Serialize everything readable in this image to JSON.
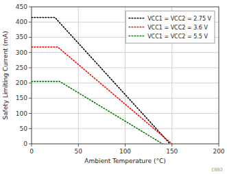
{
  "chart_data": {
    "type": "line",
    "x_label": "Ambient Temperature (°C)",
    "y_label": "Safety Limiting Current (mA)",
    "series": [
      {
        "name": "VCC1 = VCC2 = 2.75 V",
        "color": "#000000",
        "line_style": "dotted",
        "x": [
          0,
          25,
          148
        ],
        "values": [
          415,
          415,
          0
        ]
      },
      {
        "name": "VCC1 = VCC2 = 3.6 V",
        "color": "#ff0000",
        "line_style": "dotted",
        "x": [
          0,
          28,
          150
        ],
        "values": [
          318,
          318,
          0
        ]
      },
      {
        "name": "VCC1 = VCC2 = 5.5 V",
        "color": "#008000",
        "line_style": "dotted",
        "x": [
          0,
          30,
          140
        ],
        "values": [
          205,
          205,
          0
        ]
      }
    ],
    "xlim": [
      0,
      200
    ],
    "ylim": [
      0,
      450
    ],
    "xticks": [
      0,
      50,
      100,
      150,
      200
    ],
    "yticks": [
      0,
      50,
      100,
      150,
      200,
      250,
      300,
      350,
      400,
      450
    ],
    "grid": true,
    "legend": "upper right",
    "annotations": [
      "C002"
    ]
  }
}
